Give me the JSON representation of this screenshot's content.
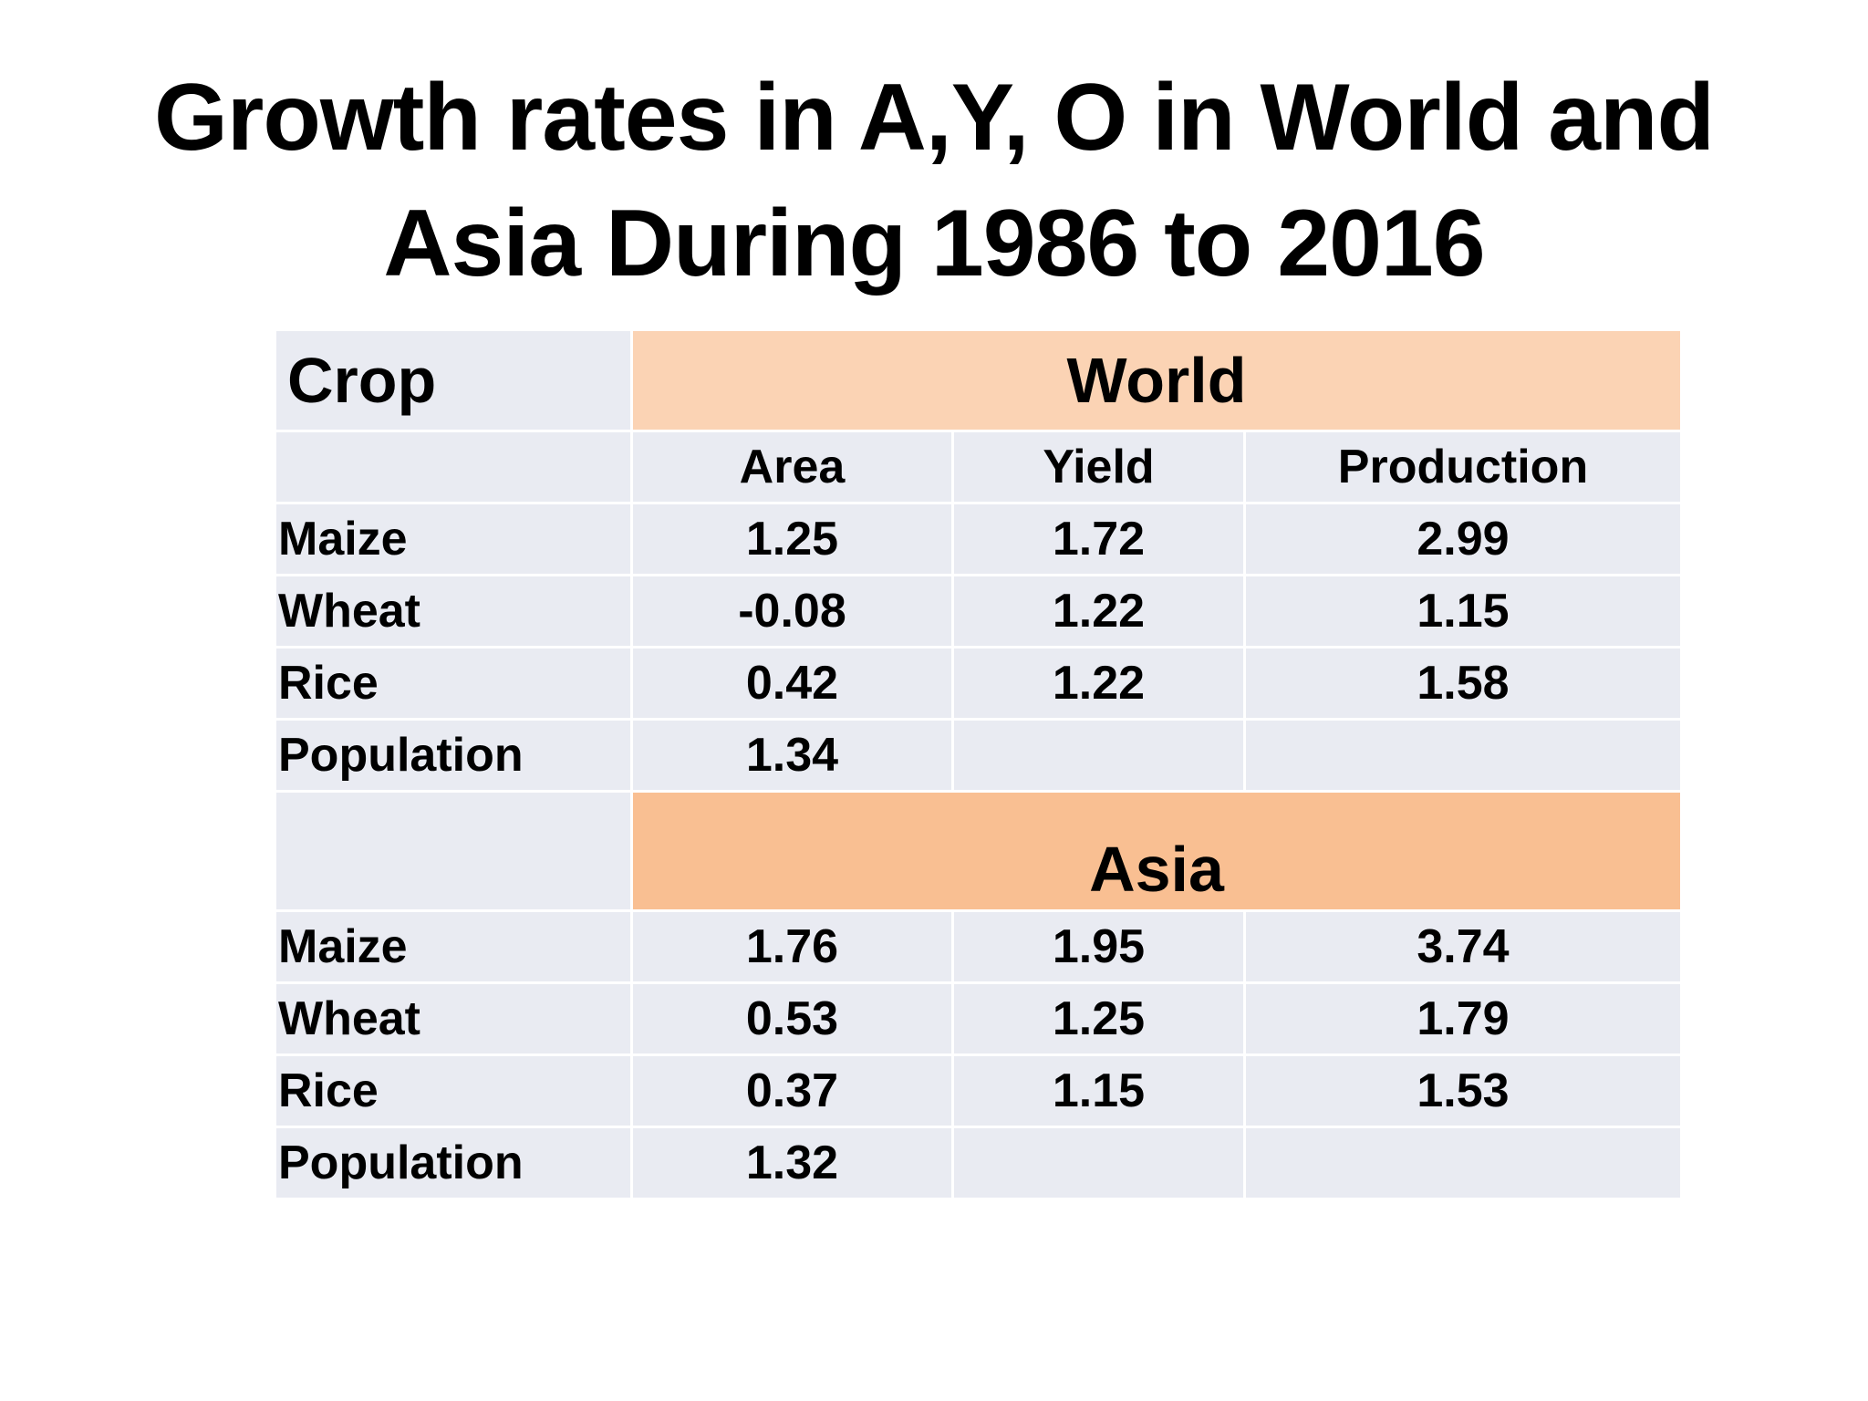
{
  "title": {
    "line1": "Growth rates in A,Y, O in World and",
    "line2": "Asia During 1986 to 2016"
  },
  "colors": {
    "cell_bg": "#e9ebf2",
    "world_header_bg": "#fbd3b4",
    "asia_header_bg": "#f9bf92"
  },
  "table": {
    "crop_header": "Crop",
    "columns": [
      "Area",
      "Yield",
      "Production"
    ],
    "world": {
      "label": "World",
      "rows": [
        {
          "crop": "Maize",
          "area": "1.25",
          "yield": "1.72",
          "production": "2.99"
        },
        {
          "crop": "Wheat",
          "area": "-0.08",
          "yield": "1.22",
          "production": "1.15"
        },
        {
          "crop": "Rice",
          "area": "0.42",
          "yield": "1.22",
          "production": "1.58"
        },
        {
          "crop": "Population",
          "area": "1.34",
          "yield": "",
          "production": ""
        }
      ]
    },
    "asia": {
      "label": "Asia",
      "rows": [
        {
          "crop": "Maize",
          "area": "1.76",
          "yield": "1.95",
          "production": "3.74"
        },
        {
          "crop": "Wheat",
          "area": "0.53",
          "yield": "1.25",
          "production": "1.79"
        },
        {
          "crop": "Rice",
          "area": "0.37",
          "yield": "1.15",
          "production": "1.53"
        },
        {
          "crop": "Population",
          "area": "1.32",
          "yield": "",
          "production": ""
        }
      ]
    }
  }
}
